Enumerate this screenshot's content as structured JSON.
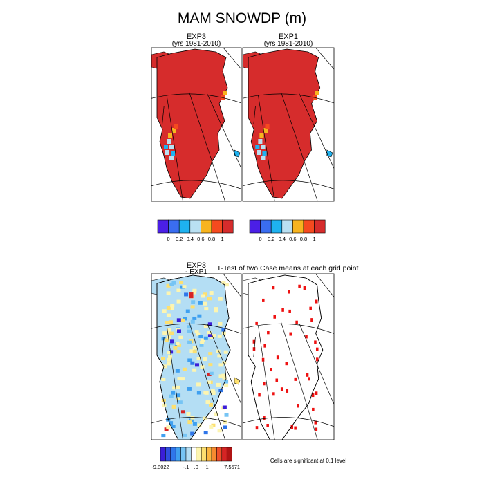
{
  "title": "MAM SNOWDP (m)",
  "panels": [
    {
      "id": "exp3",
      "line1": "EXP3",
      "line2": "(yrs 1981-2010)"
    },
    {
      "id": "exp1",
      "line1": "EXP1",
      "line2": "(yrs 1981-2010)"
    },
    {
      "id": "diff",
      "line1": "EXP3",
      "line2": "- EXP1"
    },
    {
      "id": "ttest",
      "line1": "T-Test of two Case means at each grid point",
      "line2": ""
    }
  ],
  "colors": {
    "land_red": "#d62c2c",
    "ocean": "#ffffff",
    "coast": "#000000",
    "sig_red": "#ee1111"
  },
  "chart_data": [
    {
      "type": "heatmap",
      "name": "EXP3",
      "subtitle": "(yrs 1981-2010)",
      "legend": {
        "ticks": [
          "0",
          "0.2",
          "0.4",
          "0.6",
          "0.8",
          "1"
        ],
        "colors": [
          "#4b1fe6",
          "#3a6df0",
          "#1eb2f0",
          "#b9e0f2",
          "#f7b41f",
          "#f54a1f",
          "#d62c2c"
        ]
      },
      "dominant_value": "> 1"
    },
    {
      "type": "heatmap",
      "name": "EXP1",
      "subtitle": "(yrs 1981-2010)",
      "legend": {
        "ticks": [
          "0",
          "0.2",
          "0.4",
          "0.6",
          "0.8",
          "1"
        ],
        "colors": [
          "#4b1fe6",
          "#3a6df0",
          "#1eb2f0",
          "#b9e0f2",
          "#f7b41f",
          "#f54a1f",
          "#d62c2c"
        ]
      },
      "dominant_value": "> 1"
    },
    {
      "type": "heatmap",
      "name": "EXP3 - EXP1",
      "legend": {
        "min_label": "-9.8022",
        "max_label": "7.5571",
        "ticks": [
          "-.1",
          ".0",
          ".1"
        ],
        "colors": [
          "#3b1ed8",
          "#2f4fe0",
          "#2f76ea",
          "#3fa0f0",
          "#76c4f4",
          "#b4def4",
          "#ffffff",
          "#fdf5b0",
          "#fde070",
          "#fcb640",
          "#f78a30",
          "#f0502a",
          "#d62424",
          "#b01414"
        ]
      }
    },
    {
      "type": "heatmap",
      "name": "T-Test of two Case means at each grid point",
      "note": "Cells are significant at 0.1 level"
    }
  ]
}
